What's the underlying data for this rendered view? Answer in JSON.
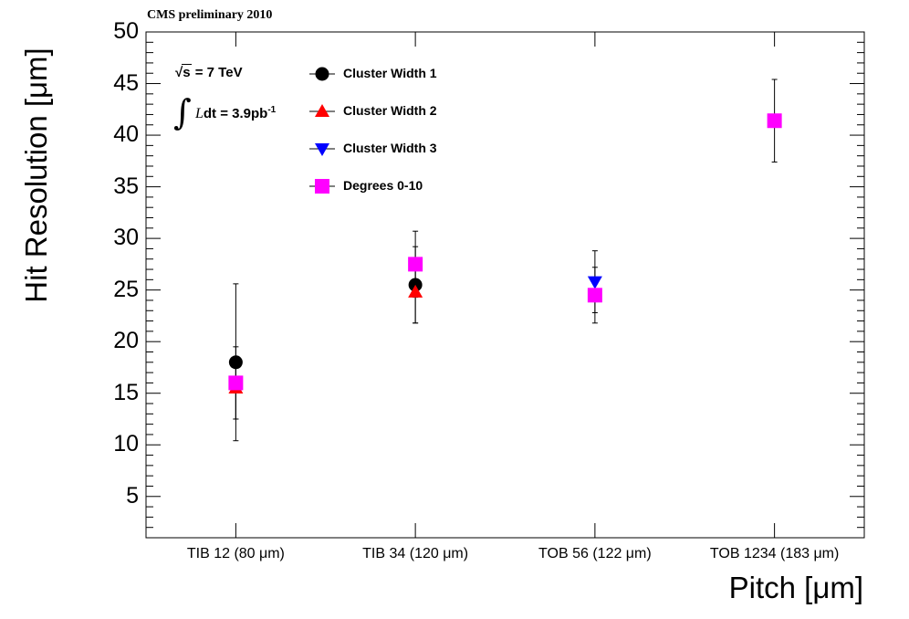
{
  "header": {
    "experiment_label": "CMS preliminary 2010"
  },
  "annotations": {
    "energy_symbol": "s",
    "energy_value": " = 7 TeV",
    "lumi_integral": "∫",
    "lumi_symbol": "L",
    "lumi_text": "dt = 3.9pb",
    "lumi_exponent": "-1"
  },
  "colors": {
    "cluster_width_1": "#000000",
    "cluster_width_2": "#ff0000",
    "cluster_width_3": "#0000ff",
    "degrees_0_10": "#ff00ff",
    "error_bars": "#000000"
  },
  "chart_data": {
    "type": "scatter",
    "title": "",
    "xlabel": "Pitch [μm]",
    "ylabel": "Hit Resolution [μm]",
    "ylim": [
      1,
      50
    ],
    "yticks": [
      5,
      10,
      15,
      20,
      25,
      30,
      35,
      40,
      45,
      50
    ],
    "categories": [
      "TIB 12 (80 μm)",
      "TIB 34 (120 μm)",
      "TOB 56 (122 μm)",
      "TOB 1234 (183 μm)"
    ],
    "legend_position": "top-left",
    "series": [
      {
        "name": "Cluster Width 1",
        "marker": "circle",
        "points": [
          {
            "category": "TIB 12 (80 μm)",
            "y": 18.0,
            "err_low": 7.6,
            "err_high": 7.6
          },
          {
            "category": "TIB 34 (120 μm)",
            "y": 25.5,
            "err_low": 3.7,
            "err_high": 3.7
          }
        ]
      },
      {
        "name": "Cluster Width 2",
        "marker": "triangle-up",
        "points": [
          {
            "category": "TIB 12 (80 μm)",
            "y": 15.5,
            "err_low": 3.0,
            "err_high": 3.0
          },
          {
            "category": "TIB 34 (120 μm)",
            "y": 24.8,
            "err_low": 3.0,
            "err_high": 3.0
          }
        ]
      },
      {
        "name": "Cluster Width 3",
        "marker": "triangle-down",
        "points": [
          {
            "category": "TOB 56 (122 μm)",
            "y": 25.8,
            "err_low": 3.0,
            "err_high": 3.0
          }
        ]
      },
      {
        "name": "Degrees 0-10",
        "marker": "square",
        "points": [
          {
            "category": "TIB 12 (80 μm)",
            "y": 16.0,
            "err_low": 3.5,
            "err_high": 3.5
          },
          {
            "category": "TIB 34 (120 μm)",
            "y": 27.5,
            "err_low": 3.2,
            "err_high": 3.2
          },
          {
            "category": "TOB 56 (122 μm)",
            "y": 24.5,
            "err_low": 2.7,
            "err_high": 2.7
          },
          {
            "category": "TOB 1234 (183 μm)",
            "y": 41.4,
            "err_low": 4.0,
            "err_high": 4.0
          }
        ]
      }
    ]
  }
}
